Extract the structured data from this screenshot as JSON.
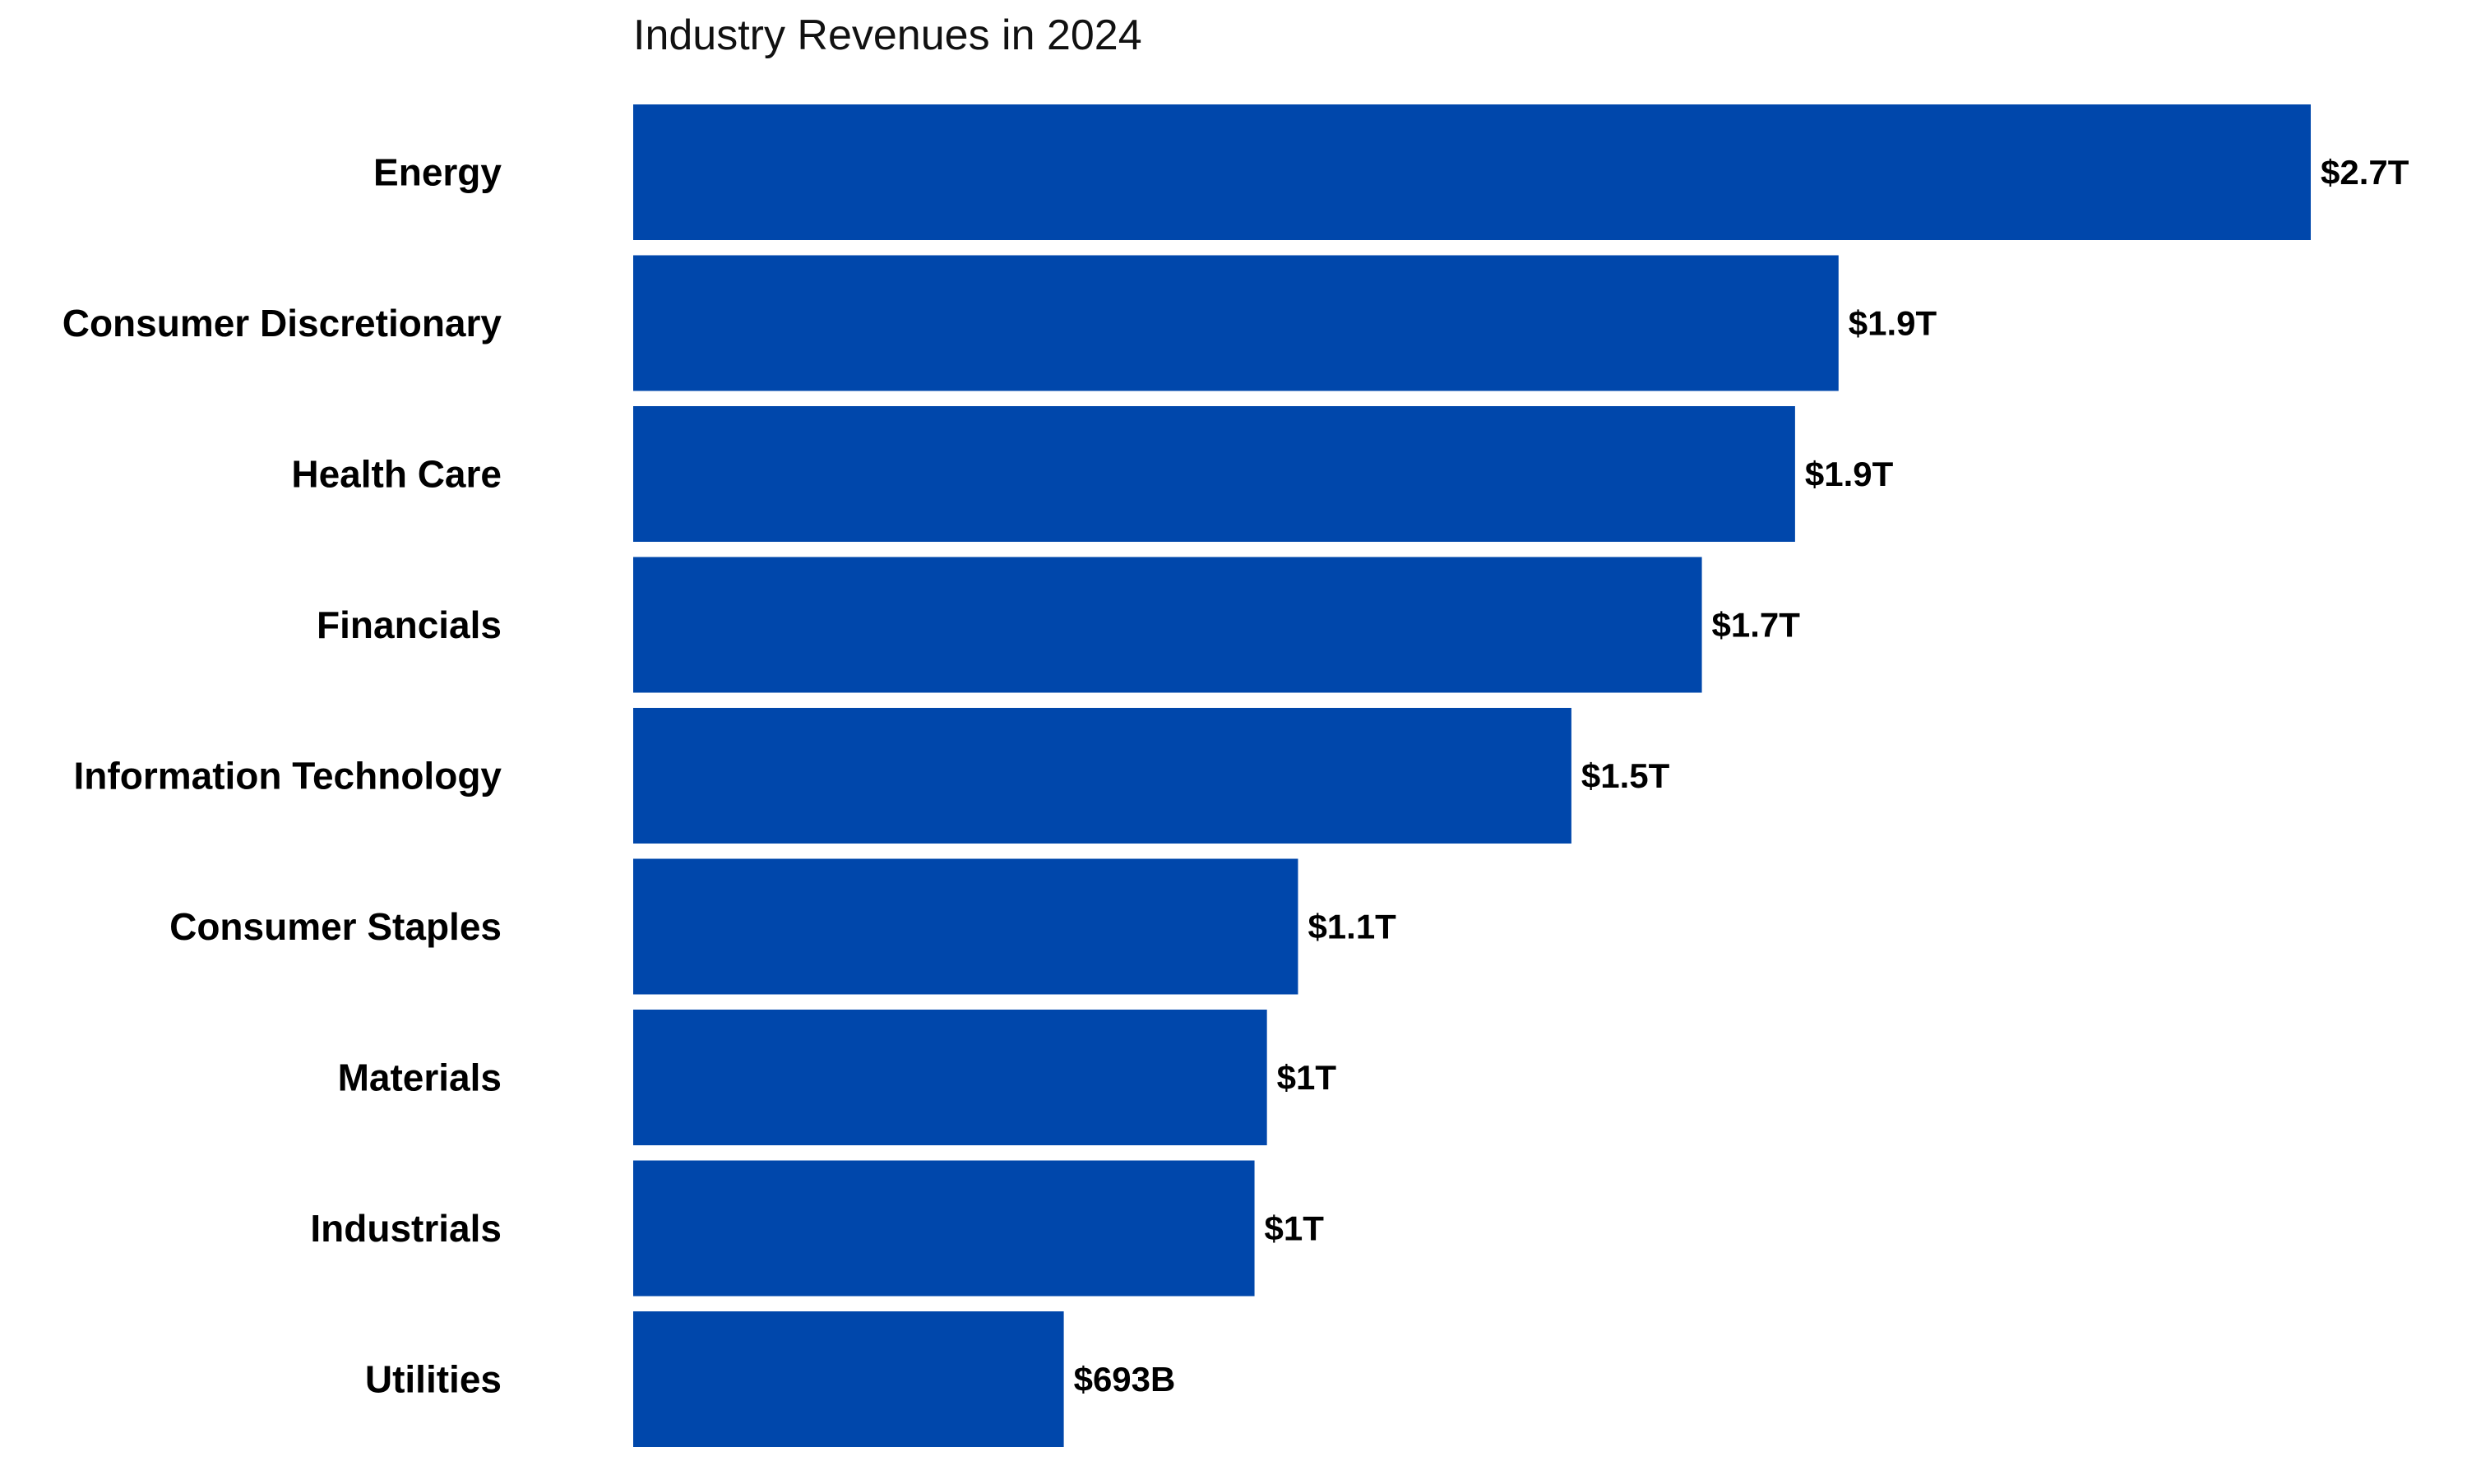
{
  "chart_data": {
    "type": "bar",
    "orientation": "horizontal",
    "title": "Industry Revenues in 2024",
    "xlabel": "",
    "ylabel": "",
    "grid": false,
    "legend": "none",
    "bar_color": "#0047AB",
    "categories": [
      "Energy",
      "Consumer Discretionary",
      "Health Care",
      "Financials",
      "Information Technology",
      "Consumer Staples",
      "Materials",
      "Industrials",
      "Utilities"
    ],
    "values": [
      2.7,
      1.94,
      1.87,
      1.72,
      1.51,
      1.07,
      1.02,
      1.0,
      0.693
    ],
    "value_unit": "trillion USD",
    "data_labels": [
      "$2.7T",
      "$1.9T",
      "$1.9T",
      "$1.7T",
      "$1.5T",
      "$1.1T",
      "$1T",
      "$1T",
      "$693B"
    ],
    "xlim": [
      0,
      2.7
    ]
  }
}
